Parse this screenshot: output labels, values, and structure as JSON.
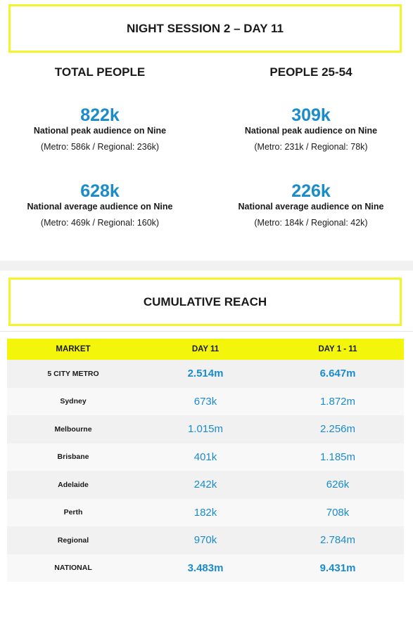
{
  "title": "NIGHT SESSION 2 – DAY 11",
  "left": {
    "heading": "TOTAL PEOPLE",
    "peak": {
      "value": "822k",
      "label": "National peak audience on Nine",
      "breakdown": "(Metro: 586k / Regional: 236k)"
    },
    "average": {
      "value": "628k",
      "label": "National average audience on Nine",
      "breakdown": "(Metro: 469k / Regional: 160k)"
    }
  },
  "right": {
    "heading": "PEOPLE 25-54",
    "peak": {
      "value": "309k",
      "label": "National peak audience on Nine",
      "breakdown": "(Metro: 231k / Regional: 78k)"
    },
    "average": {
      "value": "226k",
      "label": "National average audience on Nine",
      "breakdown": "(Metro: 184k / Regional: 42k)"
    }
  },
  "reach_title": "CUMULATIVE REACH",
  "table": {
    "headers": [
      "MARKET",
      "DAY 11",
      "DAY 1 - 11"
    ],
    "rows": [
      {
        "market": "5 CITY METRO",
        "day": "2.514m",
        "cum": "6.647m",
        "strong": true
      },
      {
        "market": "Sydney",
        "day": "673k",
        "cum": "1.872m",
        "strong": false
      },
      {
        "market": "Melbourne",
        "day": "1.015m",
        "cum": "2.256m",
        "strong": false
      },
      {
        "market": "Brisbane",
        "day": "401k",
        "cum": "1.185m",
        "strong": false
      },
      {
        "market": "Adelaide",
        "day": "242k",
        "cum": "626k",
        "strong": false
      },
      {
        "market": "Perth",
        "day": "182k",
        "cum": "708k",
        "strong": false
      },
      {
        "market": "Regional",
        "day": "970k",
        "cum": "2.784m",
        "strong": false
      },
      {
        "market": "NATIONAL",
        "day": "3.483m",
        "cum": "9.431m",
        "strong": true
      }
    ]
  }
}
